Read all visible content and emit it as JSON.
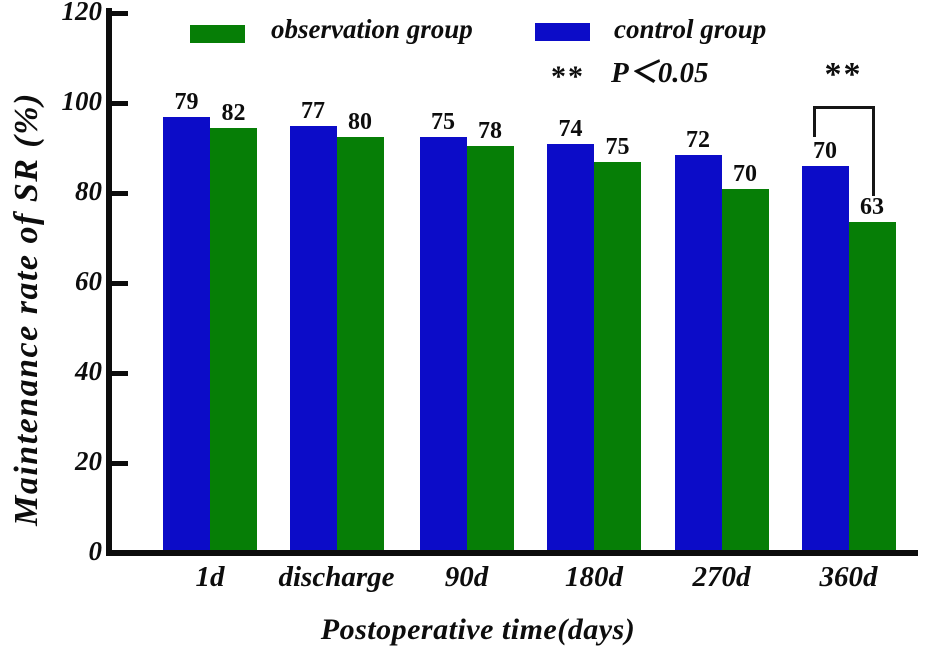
{
  "chart_data": {
    "type": "bar",
    "title": "",
    "xlabel": "Postoperative time(days)",
    "ylabel": "Maintenance rate of SR (%)",
    "ylim": [
      0,
      120
    ],
    "yticks": [
      0,
      20,
      40,
      60,
      80,
      100,
      120
    ],
    "grid": false,
    "legend_position": "top",
    "categories": [
      "1d",
      "discharge",
      "90d",
      "180d",
      "270d",
      "360d"
    ],
    "series": [
      {
        "name": "control group",
        "color": "#0c0cc8",
        "heights_pct": [
          97,
          95,
          92.5,
          91,
          88.5,
          86
        ],
        "value_labels": [
          "79",
          "77",
          "75",
          "74",
          "72",
          "70"
        ]
      },
      {
        "name": "observation group",
        "color": "#067e06",
        "heights_pct": [
          94.5,
          92.5,
          90.5,
          87,
          81,
          73.5
        ],
        "value_labels": [
          "82",
          "80",
          "78",
          "75",
          "70",
          "63"
        ]
      }
    ],
    "legend": {
      "items": [
        {
          "label": "observation group",
          "color": "#067e06"
        },
        {
          "label": "control group",
          "color": "#0c0cc8"
        }
      ],
      "significance_note": {
        "symbol": "**",
        "text": "P＜0.05"
      }
    },
    "annotation": {
      "symbol": "**",
      "category": "360d",
      "note": "significance bracket linking control and observation bars at 360d"
    }
  }
}
